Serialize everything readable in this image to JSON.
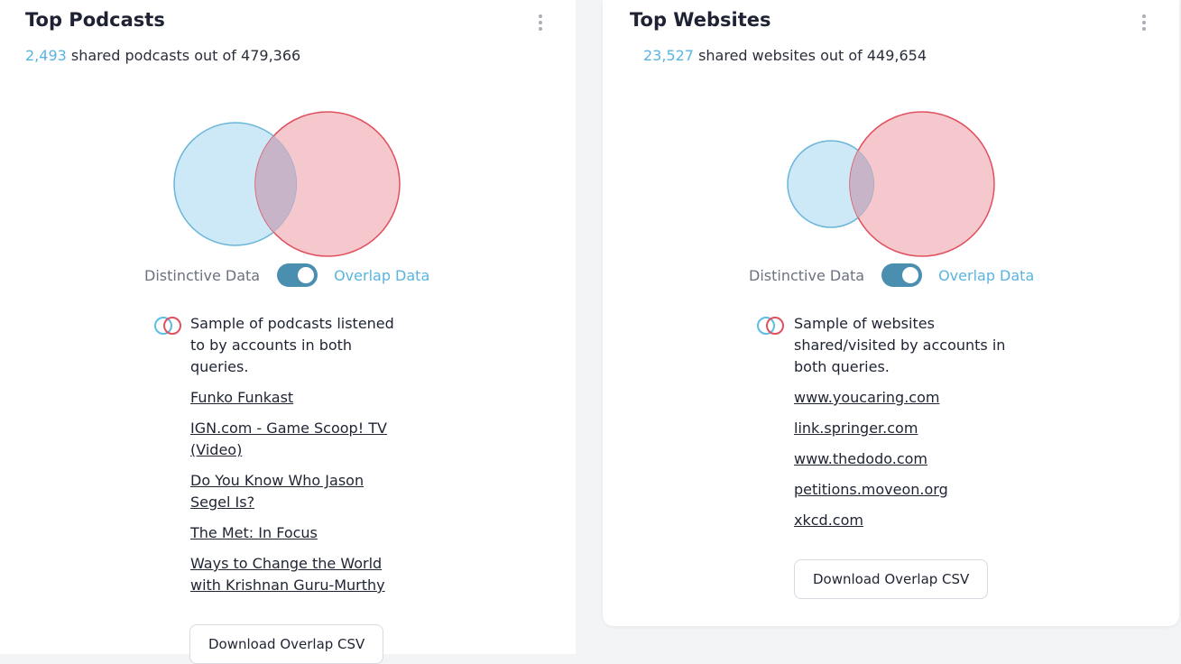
{
  "podcasts": {
    "title": "Top Podcasts",
    "shared_count": "2,493",
    "shared_text": " shared podcasts out of 479,366",
    "toggle": {
      "left_label": "Distinctive Data",
      "right_label": "Overlap Data",
      "state": "on"
    },
    "sample_text": "Sample of podcasts listened to by accounts in both queries.",
    "items": [
      "Funko Funkast",
      "IGN.com - Game Scoop! TV (Video)",
      "Do You Know Who Jason Segel Is?",
      "The Met: In Focus",
      "Ways to Change the World with Krishnan Guru-Murthy"
    ],
    "download_label": "Download Overlap CSV"
  },
  "websites": {
    "title": "Top Websites",
    "shared_count": "23,527",
    "shared_text": " shared websites out of 449,654",
    "toggle": {
      "left_label": "Distinctive Data",
      "right_label": "Overlap Data",
      "state": "on"
    },
    "sample_text": "Sample of websites shared/visited by accounts in both queries.",
    "items": [
      "www.youcaring.com",
      "link.springer.com",
      "www.thedodo.com",
      "petitions.moveon.org",
      "xkcd.com"
    ],
    "download_label": "Download Overlap CSV"
  },
  "colors": {
    "blue_fill": "#cde9f7",
    "blue_stroke": "#5bbde3",
    "red_fill": "#f5c8cd",
    "red_stroke": "#e0505e",
    "overlap_fill": "#c8b4c8",
    "accent": "#5ab4e0",
    "toggle_bg": "#4a8fb0"
  },
  "icons": {
    "menu": "kebab-menu-icon",
    "overlap": "venn-overlap-icon"
  }
}
